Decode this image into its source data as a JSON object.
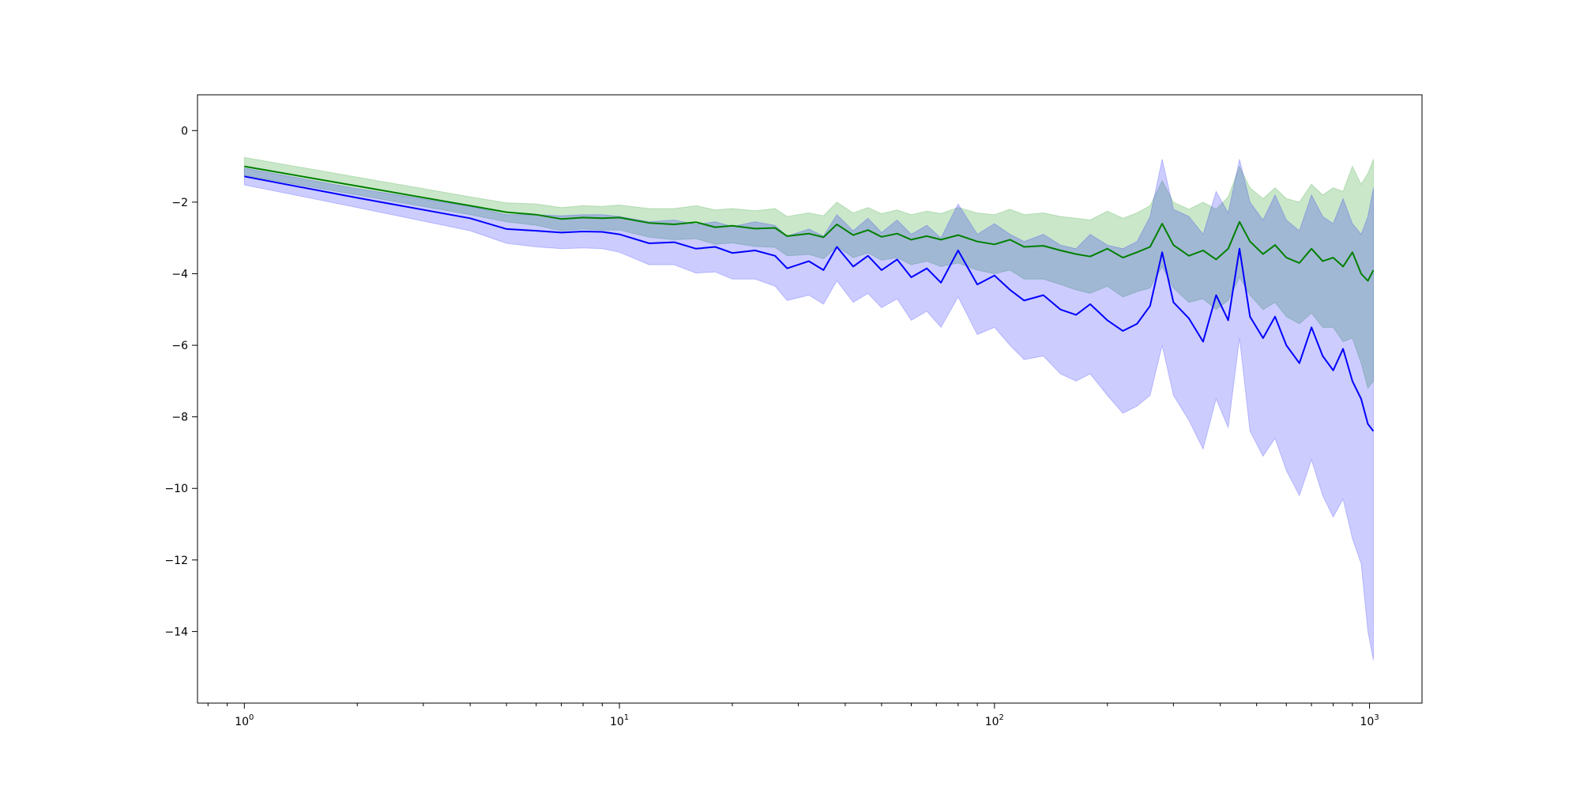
{
  "chart_data": {
    "type": "area",
    "xscale": "log",
    "xlim": [
      0.75,
      1380
    ],
    "ylim": [
      -16.0,
      1.0
    ],
    "grid": false,
    "x_major_ticks": [
      {
        "value": 1,
        "base": "10",
        "exp": "0"
      },
      {
        "value": 10,
        "base": "10",
        "exp": "1"
      },
      {
        "value": 100,
        "base": "10",
        "exp": "2"
      },
      {
        "value": 1000,
        "base": "10",
        "exp": "3"
      }
    ],
    "y_ticks": [
      {
        "value": 0,
        "label": "0"
      },
      {
        "value": -2,
        "label": "−2"
      },
      {
        "value": -4,
        "label": "−4"
      },
      {
        "value": -6,
        "label": "−6"
      },
      {
        "value": -8,
        "label": "−8"
      },
      {
        "value": -10,
        "label": "−10"
      },
      {
        "value": -12,
        "label": "−12"
      },
      {
        "value": -14,
        "label": "−14"
      }
    ],
    "series": [
      {
        "line_color": "#008000",
        "band_color": "#2ca02c",
        "band_opacity": 0.25,
        "points": [
          [
            1,
            -1.0,
            -0.75,
            -1.25
          ],
          [
            2,
            -1.55,
            -1.3,
            -1.8
          ],
          [
            4,
            -2.1,
            -1.85,
            -2.35
          ],
          [
            5,
            -2.28,
            -2.02,
            -2.55
          ],
          [
            6,
            -2.35,
            -2.05,
            -2.65
          ],
          [
            7,
            -2.47,
            -2.15,
            -2.8
          ],
          [
            8,
            -2.43,
            -2.1,
            -2.75
          ],
          [
            9,
            -2.45,
            -2.12,
            -2.78
          ],
          [
            10,
            -2.43,
            -2.08,
            -2.78
          ],
          [
            12,
            -2.58,
            -2.18,
            -2.98
          ],
          [
            14,
            -2.62,
            -2.18,
            -3.05
          ],
          [
            16,
            -2.56,
            -2.1,
            -3.02
          ],
          [
            18,
            -2.7,
            -2.22,
            -3.18
          ],
          [
            20,
            -2.66,
            -2.18,
            -3.14
          ],
          [
            23,
            -2.74,
            -2.24,
            -3.24
          ],
          [
            26,
            -2.72,
            -2.18,
            -3.26
          ],
          [
            28,
            -2.95,
            -2.4,
            -3.5
          ],
          [
            32,
            -2.88,
            -2.3,
            -3.46
          ],
          [
            35,
            -2.98,
            -2.38,
            -3.58
          ],
          [
            38,
            -2.62,
            -2.0,
            -3.24
          ],
          [
            42,
            -2.92,
            -2.3,
            -3.55
          ],
          [
            46,
            -2.78,
            -2.15,
            -3.42
          ],
          [
            50,
            -2.97,
            -2.32,
            -3.62
          ],
          [
            55,
            -2.88,
            -2.22,
            -3.55
          ],
          [
            60,
            -3.05,
            -2.35,
            -3.75
          ],
          [
            66,
            -2.95,
            -2.25,
            -3.65
          ],
          [
            72,
            -3.05,
            -2.32,
            -3.8
          ],
          [
            80,
            -2.92,
            -2.15,
            -3.7
          ],
          [
            90,
            -3.1,
            -2.3,
            -3.9
          ],
          [
            100,
            -3.18,
            -2.35,
            -4.0
          ],
          [
            110,
            -3.05,
            -2.2,
            -3.9
          ],
          [
            120,
            -3.25,
            -2.35,
            -4.15
          ],
          [
            135,
            -3.22,
            -2.3,
            -4.15
          ],
          [
            150,
            -3.35,
            -2.4,
            -4.3
          ],
          [
            165,
            -3.45,
            -2.45,
            -4.45
          ],
          [
            180,
            -3.52,
            -2.5,
            -4.55
          ],
          [
            200,
            -3.3,
            -2.25,
            -4.35
          ],
          [
            220,
            -3.55,
            -2.45,
            -4.65
          ],
          [
            240,
            -3.4,
            -2.3,
            -4.5
          ],
          [
            260,
            -3.25,
            -2.1,
            -4.4
          ],
          [
            280,
            -2.6,
            -1.4,
            -3.8
          ],
          [
            300,
            -3.2,
            -2.0,
            -4.4
          ],
          [
            330,
            -3.5,
            -2.2,
            -4.8
          ],
          [
            360,
            -3.35,
            -2.0,
            -4.7
          ],
          [
            390,
            -3.6,
            -2.2,
            -5.0
          ],
          [
            420,
            -3.3,
            -1.85,
            -4.75
          ],
          [
            450,
            -2.55,
            -1.0,
            -4.1
          ],
          [
            480,
            -3.1,
            -1.6,
            -4.6
          ],
          [
            520,
            -3.45,
            -1.9,
            -5.0
          ],
          [
            560,
            -3.2,
            -1.6,
            -4.8
          ],
          [
            600,
            -3.55,
            -1.9,
            -5.2
          ],
          [
            650,
            -3.7,
            -2.0,
            -5.4
          ],
          [
            700,
            -3.3,
            -1.5,
            -5.1
          ],
          [
            750,
            -3.65,
            -1.8,
            -5.5
          ],
          [
            800,
            -3.55,
            -1.6,
            -5.5
          ],
          [
            850,
            -3.8,
            -1.7,
            -5.9
          ],
          [
            900,
            -3.4,
            -1.0,
            -5.8
          ],
          [
            950,
            -4.0,
            -1.5,
            -6.5
          ],
          [
            990,
            -4.2,
            -1.2,
            -7.2
          ],
          [
            1024,
            -3.9,
            -0.8,
            -7.0
          ]
        ]
      },
      {
        "line_color": "#0000ff",
        "band_color": "#0000ff",
        "band_opacity": 0.2,
        "points": [
          [
            1,
            -1.28,
            -1.05,
            -1.52
          ],
          [
            2,
            -1.88,
            -1.62,
            -2.15
          ],
          [
            4,
            -2.45,
            -2.12,
            -2.8
          ],
          [
            5,
            -2.75,
            -2.35,
            -3.15
          ],
          [
            6,
            -2.8,
            -2.35,
            -3.25
          ],
          [
            7,
            -2.85,
            -2.38,
            -3.3
          ],
          [
            8,
            -2.82,
            -2.35,
            -3.28
          ],
          [
            9,
            -2.83,
            -2.35,
            -3.3
          ],
          [
            10,
            -2.9,
            -2.4,
            -3.4
          ],
          [
            12,
            -3.15,
            -2.55,
            -3.75
          ],
          [
            14,
            -3.12,
            -2.5,
            -3.75
          ],
          [
            16,
            -3.3,
            -2.62,
            -3.98
          ],
          [
            18,
            -3.25,
            -2.55,
            -3.95
          ],
          [
            20,
            -3.42,
            -2.68,
            -4.15
          ],
          [
            23,
            -3.35,
            -2.55,
            -4.15
          ],
          [
            26,
            -3.5,
            -2.65,
            -4.35
          ],
          [
            28,
            -3.85,
            -2.95,
            -4.75
          ],
          [
            32,
            -3.65,
            -2.75,
            -4.6
          ],
          [
            35,
            -3.9,
            -2.95,
            -4.85
          ],
          [
            38,
            -3.25,
            -2.35,
            -4.2
          ],
          [
            42,
            -3.8,
            -2.8,
            -4.8
          ],
          [
            46,
            -3.5,
            -2.45,
            -4.55
          ],
          [
            50,
            -3.9,
            -2.85,
            -4.95
          ],
          [
            55,
            -3.6,
            -2.5,
            -4.7
          ],
          [
            60,
            -4.1,
            -2.9,
            -5.3
          ],
          [
            66,
            -3.85,
            -2.65,
            -5.05
          ],
          [
            72,
            -4.25,
            -3.0,
            -5.5
          ],
          [
            80,
            -3.35,
            -2.05,
            -4.65
          ],
          [
            90,
            -4.3,
            -2.9,
            -5.7
          ],
          [
            100,
            -4.05,
            -2.6,
            -5.5
          ],
          [
            110,
            -4.45,
            -2.9,
            -6.0
          ],
          [
            120,
            -4.75,
            -3.1,
            -6.4
          ],
          [
            135,
            -4.6,
            -2.9,
            -6.3
          ],
          [
            150,
            -5.0,
            -3.2,
            -6.8
          ],
          [
            165,
            -5.15,
            -3.3,
            -7.0
          ],
          [
            180,
            -4.85,
            -2.9,
            -6.8
          ],
          [
            200,
            -5.3,
            -3.2,
            -7.4
          ],
          [
            220,
            -5.6,
            -3.3,
            -7.9
          ],
          [
            240,
            -5.4,
            -3.1,
            -7.7
          ],
          [
            260,
            -4.9,
            -2.4,
            -7.4
          ],
          [
            280,
            -3.4,
            -0.8,
            -6.0
          ],
          [
            300,
            -4.8,
            -2.2,
            -7.4
          ],
          [
            330,
            -5.25,
            -2.4,
            -8.1
          ],
          [
            360,
            -5.9,
            -2.9,
            -8.9
          ],
          [
            390,
            -4.6,
            -1.7,
            -7.5
          ],
          [
            420,
            -5.3,
            -2.3,
            -8.3
          ],
          [
            450,
            -3.3,
            -0.8,
            -5.8
          ],
          [
            480,
            -5.2,
            -2.0,
            -8.4
          ],
          [
            520,
            -5.8,
            -2.5,
            -9.1
          ],
          [
            560,
            -5.2,
            -1.8,
            -8.6
          ],
          [
            600,
            -6.0,
            -2.5,
            -9.5
          ],
          [
            650,
            -6.5,
            -2.8,
            -10.2
          ],
          [
            700,
            -5.5,
            -1.8,
            -9.2
          ],
          [
            750,
            -6.3,
            -2.4,
            -10.2
          ],
          [
            800,
            -6.7,
            -2.6,
            -10.8
          ],
          [
            850,
            -6.1,
            -1.9,
            -10.3
          ],
          [
            900,
            -7.0,
            -2.6,
            -11.4
          ],
          [
            950,
            -7.5,
            -2.9,
            -12.1
          ],
          [
            990,
            -8.2,
            -2.4,
            -14.0
          ],
          [
            1024,
            -8.4,
            -1.6,
            -14.8
          ]
        ]
      }
    ]
  }
}
